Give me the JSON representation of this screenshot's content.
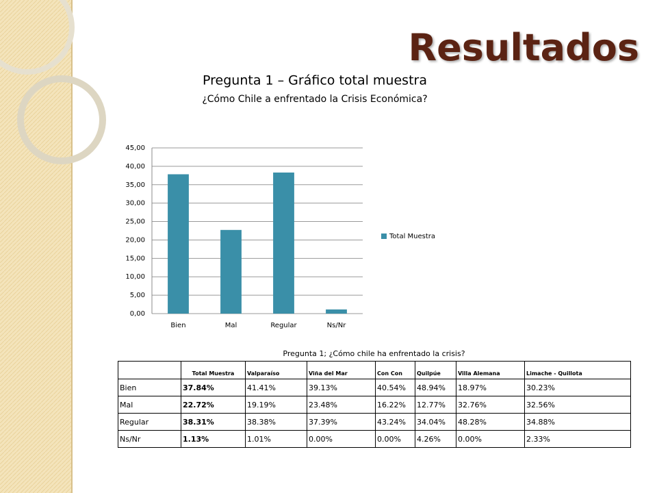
{
  "header": {
    "title": "Resultados"
  },
  "chart_data": {
    "type": "bar",
    "title": "Pregunta 1 – Gráfico total muestra",
    "subtitle": "¿Cómo Chile a enfrentado la Crisis Económica?",
    "categories": [
      "Bien",
      "Mal",
      "Regular",
      "Ns/Nr"
    ],
    "series": [
      {
        "name": "Total Muestra",
        "color": "#3a8fa8",
        "values": [
          37.84,
          22.72,
          38.31,
          1.13
        ]
      }
    ],
    "ylim": [
      0,
      45
    ],
    "yticks": [
      {
        "value": 0,
        "label": "0,00"
      },
      {
        "value": 5,
        "label": "5,00"
      },
      {
        "value": 10,
        "label": "10,00"
      },
      {
        "value": 15,
        "label": "15,00"
      },
      {
        "value": 20,
        "label": "20,00"
      },
      {
        "value": 25,
        "label": "25,00"
      },
      {
        "value": 30,
        "label": "30,00"
      },
      {
        "value": 35,
        "label": "35,00"
      },
      {
        "value": 40,
        "label": "40,00"
      },
      {
        "value": 45,
        "label": "45,00"
      }
    ],
    "grid": true,
    "legend": "right"
  },
  "table": {
    "title": "Pregunta 1; ¿Cómo chile ha enfrentado la crisis?",
    "columns": [
      "Total Muestra",
      "Valparaíso",
      "Viña del Mar",
      "Con Con",
      "Quilpúe",
      "Villa Alemana",
      "Limache - Quillota"
    ],
    "rows": [
      [
        "Bien",
        "37.84%",
        "41.41%",
        "39.13%",
        "40.54%",
        "48.94%",
        "18.97%",
        "30.23%"
      ],
      [
        "Mal",
        "22.72%",
        "19.19%",
        "23.48%",
        "16.22%",
        "12.77%",
        "32.76%",
        "32.56%"
      ],
      [
        "Regular",
        "38.31%",
        "38.38%",
        "37.39%",
        "43.24%",
        "34.04%",
        "48.28%",
        "34.88%"
      ],
      [
        "Ns/Nr",
        "1.13%",
        "1.01%",
        "0.00%",
        "0.00%",
        "4.26%",
        "0.00%",
        "2.33%"
      ]
    ]
  }
}
